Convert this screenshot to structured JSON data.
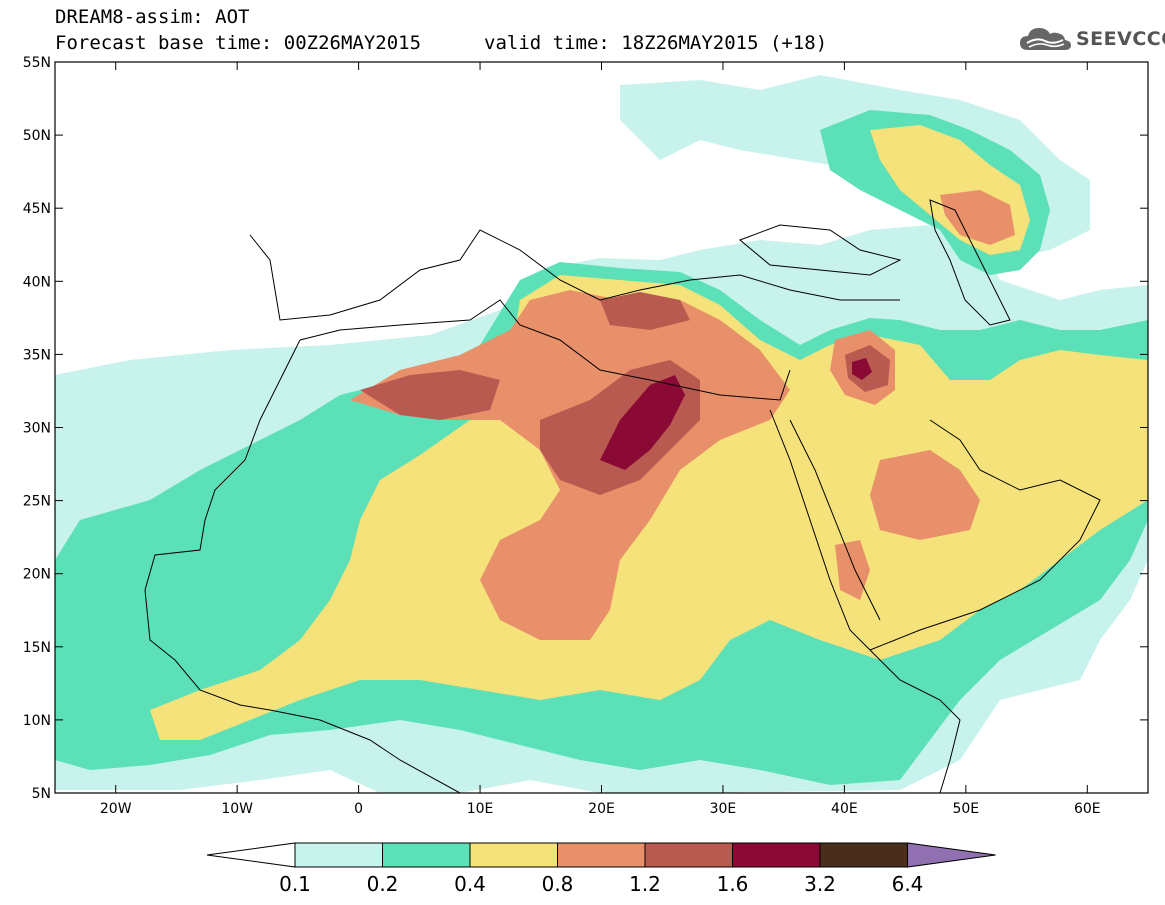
{
  "header": {
    "title_line1": "DREAM8-assim: AOT",
    "title_line2": "Forecast base time: 00Z26MAY2015",
    "valid_time": "valid time: 18Z26MAY2015 (+18)",
    "logo_text": "SEEVCCC"
  },
  "map": {
    "lon_range": [
      -25,
      65
    ],
    "lat_range": [
      5,
      55
    ],
    "lon_ticks": [
      {
        "value": -20,
        "label": "20W"
      },
      {
        "value": -10,
        "label": "10W"
      },
      {
        "value": 0,
        "label": "0"
      },
      {
        "value": 10,
        "label": "10E"
      },
      {
        "value": 20,
        "label": "20E"
      },
      {
        "value": 30,
        "label": "30E"
      },
      {
        "value": 40,
        "label": "40E"
      },
      {
        "value": 50,
        "label": "50E"
      },
      {
        "value": 60,
        "label": "60E"
      }
    ],
    "lat_ticks": [
      {
        "value": 55,
        "label": "55N"
      },
      {
        "value": 50,
        "label": "50N"
      },
      {
        "value": 45,
        "label": "45N"
      },
      {
        "value": 40,
        "label": "40N"
      },
      {
        "value": 35,
        "label": "35N"
      },
      {
        "value": 30,
        "label": "30N"
      },
      {
        "value": 25,
        "label": "25N"
      },
      {
        "value": 20,
        "label": "20N"
      },
      {
        "value": 15,
        "label": "15N"
      },
      {
        "value": 10,
        "label": "10N"
      },
      {
        "value": 5,
        "label": "5N"
      }
    ]
  },
  "colorbar": {
    "bins": [
      {
        "color": "#c8f2ec"
      },
      {
        "color": "#5ce0b8"
      },
      {
        "color": "#f5e27a"
      },
      {
        "color": "#e8906a"
      },
      {
        "color": "#b85a50"
      },
      {
        "color": "#8a0a35"
      },
      {
        "color": "#4a2e1c"
      }
    ],
    "under_color": "#ffffff",
    "over_color": "#9070b0",
    "labels": [
      "0.1",
      "0.2",
      "0.4",
      "0.8",
      "1.2",
      "1.6",
      "3.2",
      "6.4"
    ]
  }
}
